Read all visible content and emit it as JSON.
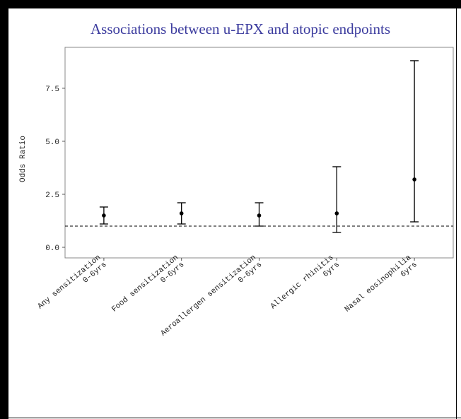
{
  "chart_data": {
    "type": "errorbar",
    "title": "Associations between u-EPX and atopic endpoints",
    "y_label": "Odds Ratio",
    "categories": [
      [
        "Any sensitization",
        "0-6yrs"
      ],
      [
        "Food sensitization",
        "0-6yrs"
      ],
      [
        "Aeroallergen sensitization",
        "0-6yrs"
      ],
      [
        "Allergic rhinitis",
        "6yrs"
      ],
      [
        "Nasal eosinophilia",
        "6yrs"
      ]
    ],
    "values": [
      1.5,
      1.6,
      1.5,
      1.6,
      3.2
    ],
    "lower": [
      1.1,
      1.1,
      1.0,
      0.7,
      1.2
    ],
    "upper": [
      1.9,
      2.1,
      2.1,
      3.8,
      8.8
    ],
    "reference_line": 1,
    "color": "#000000",
    "ylim": [
      -0.5,
      9.43
    ],
    "yticks": [
      {
        "value": 0,
        "label": "0.0"
      },
      2.5,
      {
        "value": 5,
        "label": "5.0"
      },
      7.5
    ]
  }
}
